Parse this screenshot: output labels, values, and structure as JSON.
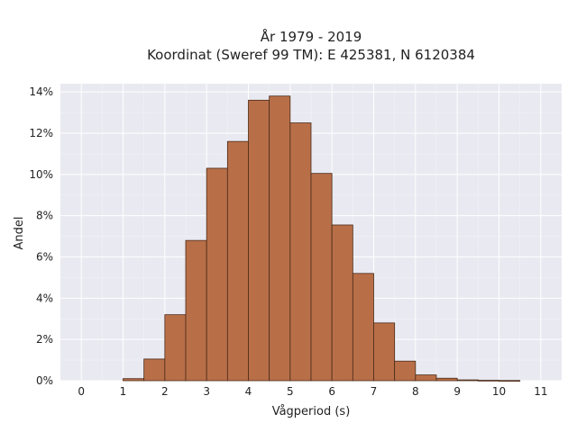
{
  "chart_data": {
    "type": "bar",
    "title_line1": "År 1979 - 2019",
    "title_line2": "Koordinat (Sweref 99 TM): E 425381, N 6120384",
    "xlabel": "Vågperiod (s)",
    "ylabel": "Andel",
    "xlim": [
      -0.5,
      11.5
    ],
    "ylim": [
      0,
      14.4
    ],
    "grid": true,
    "x_ticks": [
      0,
      1,
      2,
      3,
      4,
      5,
      6,
      7,
      8,
      9,
      10,
      11
    ],
    "x_tick_labels": [
      "0",
      "1",
      "2",
      "3",
      "4",
      "5",
      "6",
      "7",
      "8",
      "9",
      "10",
      "11"
    ],
    "y_ticks": [
      0,
      2,
      4,
      6,
      8,
      10,
      12,
      14
    ],
    "y_tick_labels": [
      "0%",
      "2%",
      "4%",
      "6%",
      "8%",
      "10%",
      "12%",
      "14%"
    ],
    "bin_width": 0.5,
    "bin_starts": [
      1.0,
      1.5,
      2.0,
      2.5,
      3.0,
      3.5,
      4.0,
      4.5,
      5.0,
      5.5,
      6.0,
      6.5,
      7.0,
      7.5,
      8.0,
      8.5,
      9.0,
      9.5,
      10.0
    ],
    "values": [
      0.1,
      1.05,
      3.2,
      6.8,
      10.3,
      11.6,
      13.6,
      13.8,
      12.5,
      10.05,
      7.55,
      5.2,
      2.8,
      0.95,
      0.28,
      0.12,
      0.04,
      0.02,
      0.01
    ],
    "colors": {
      "bar_fill": "#b86f48",
      "bar_edge": "#4a2a18",
      "plot_background": "#e9e9f1",
      "grid_major": "#ffffff",
      "grid_minor": "#f2f2f7"
    }
  }
}
